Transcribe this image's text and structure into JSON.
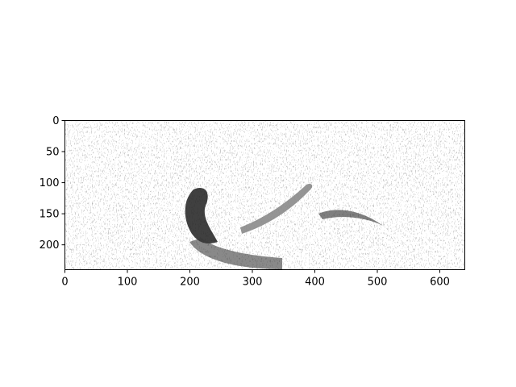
{
  "chart_data": {
    "type": "heatmap",
    "title": "",
    "xlabel": "",
    "ylabel": "",
    "xlim": [
      0,
      640
    ],
    "ylim": [
      240,
      0
    ],
    "colormap": "grayscale",
    "grid": false,
    "x_ticks": [
      0,
      100,
      200,
      300,
      400,
      500,
      600
    ],
    "y_ticks": [
      0,
      50,
      100,
      150,
      200
    ],
    "image_description_ids": {
      "content": "embossed-edge-filtered-image",
      "image_width": 640,
      "image_height": 240
    }
  },
  "colors": {
    "frame": "#000000",
    "background": "#ffffff",
    "dark_region": "#202020",
    "mid_region": "#888888"
  }
}
